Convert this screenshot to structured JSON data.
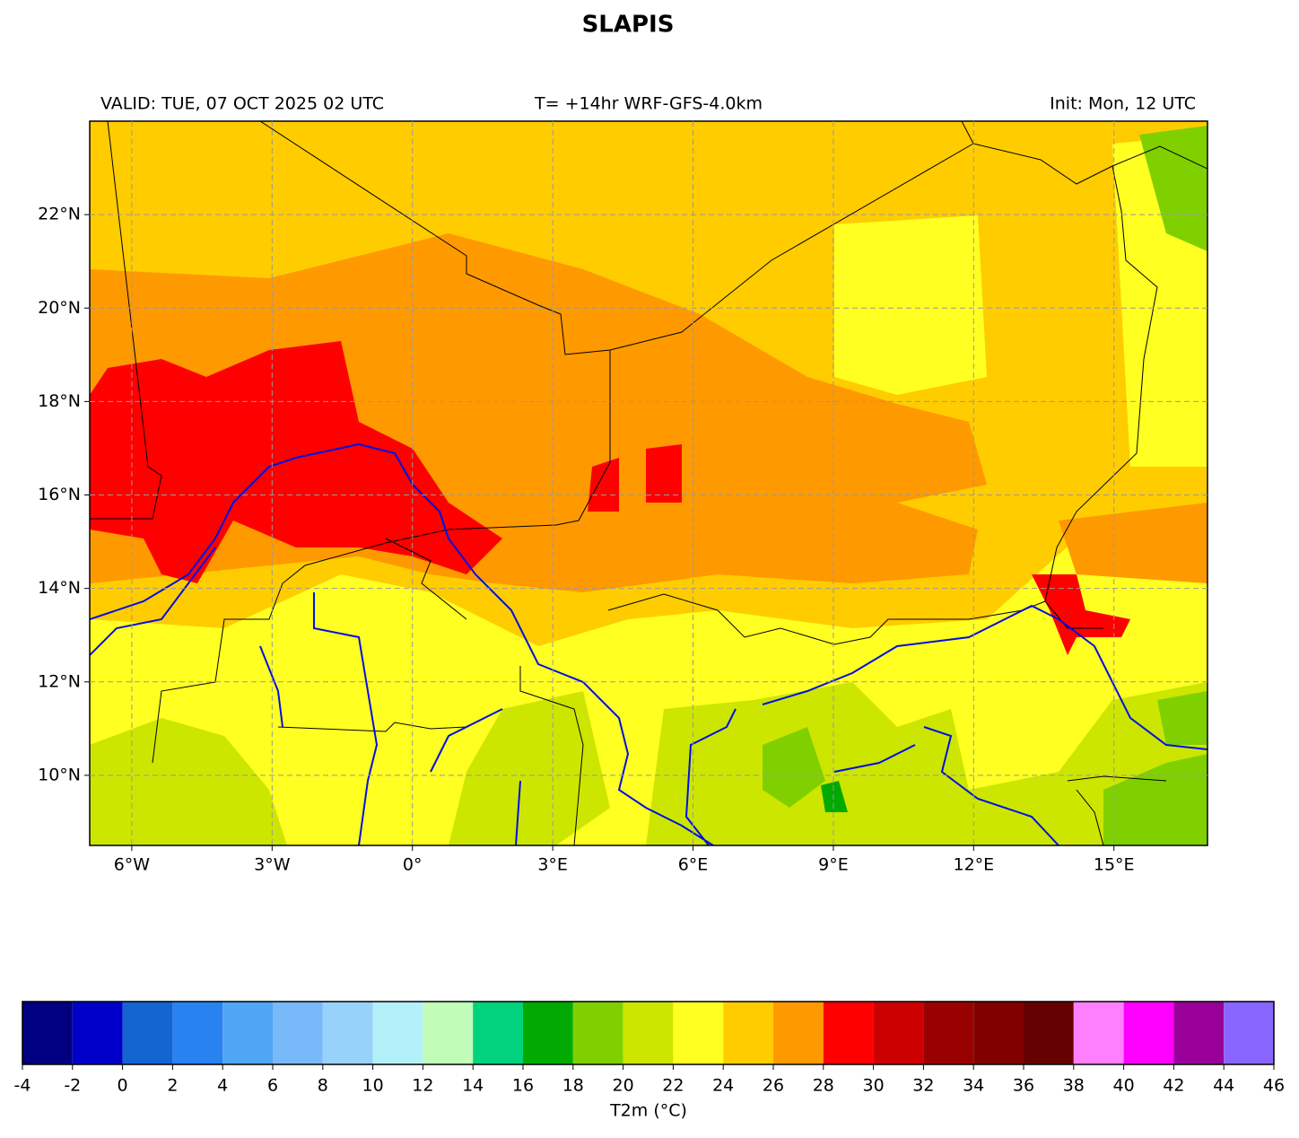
{
  "title": "SLAPIS",
  "header": {
    "valid": "VALID: TUE, 07 OCT 2025 02 UTC",
    "run": "T= +14hr WRF-GFS-4.0km",
    "init": "Init: Mon, 12 UTC"
  },
  "map": {
    "xlim": [
      -6.9,
      17
    ],
    "ylim": [
      8.5,
      24
    ],
    "grid": true,
    "lat_ticks": [
      {
        "value": 10,
        "label": "10°N"
      },
      {
        "value": 12,
        "label": "12°N"
      },
      {
        "value": 14,
        "label": "14°N"
      },
      {
        "value": 16,
        "label": "16°N"
      },
      {
        "value": 18,
        "label": "18°N"
      },
      {
        "value": 20,
        "label": "20°N"
      },
      {
        "value": 22,
        "label": "22°N"
      }
    ],
    "lon_ticks": [
      {
        "value": -6,
        "label": "6°W"
      },
      {
        "value": -3,
        "label": "3°W"
      },
      {
        "value": 0,
        "label": "0°"
      },
      {
        "value": 3,
        "label": "3°E"
      },
      {
        "value": 6,
        "label": "6°E"
      },
      {
        "value": 9,
        "label": "9°E"
      },
      {
        "value": 12,
        "label": "12°E"
      },
      {
        "value": 15,
        "label": "15°E"
      }
    ]
  },
  "colorbar": {
    "label": "T2m (°C)",
    "ticks": [
      -4,
      -2,
      0,
      2,
      4,
      6,
      8,
      10,
      12,
      14,
      16,
      18,
      20,
      22,
      24,
      26,
      28,
      30,
      32,
      34,
      36,
      38,
      40,
      42,
      44,
      46
    ],
    "colors": [
      "#000080",
      "#0000c8",
      "#1464d2",
      "#2882f0",
      "#50a5f5",
      "#78b9fa",
      "#96d2fa",
      "#b4f0fa",
      "#c1fcb8",
      "#00d27d",
      "#00aa00",
      "#80d000",
      "#cce600",
      "#ffff22",
      "#ffcc00",
      "#ff9900",
      "#ff0000",
      "#cc0000",
      "#990000",
      "#800000",
      "#640000",
      "#ff80ff",
      "#ff00ff",
      "#990099",
      "#8866ff"
    ]
  }
}
